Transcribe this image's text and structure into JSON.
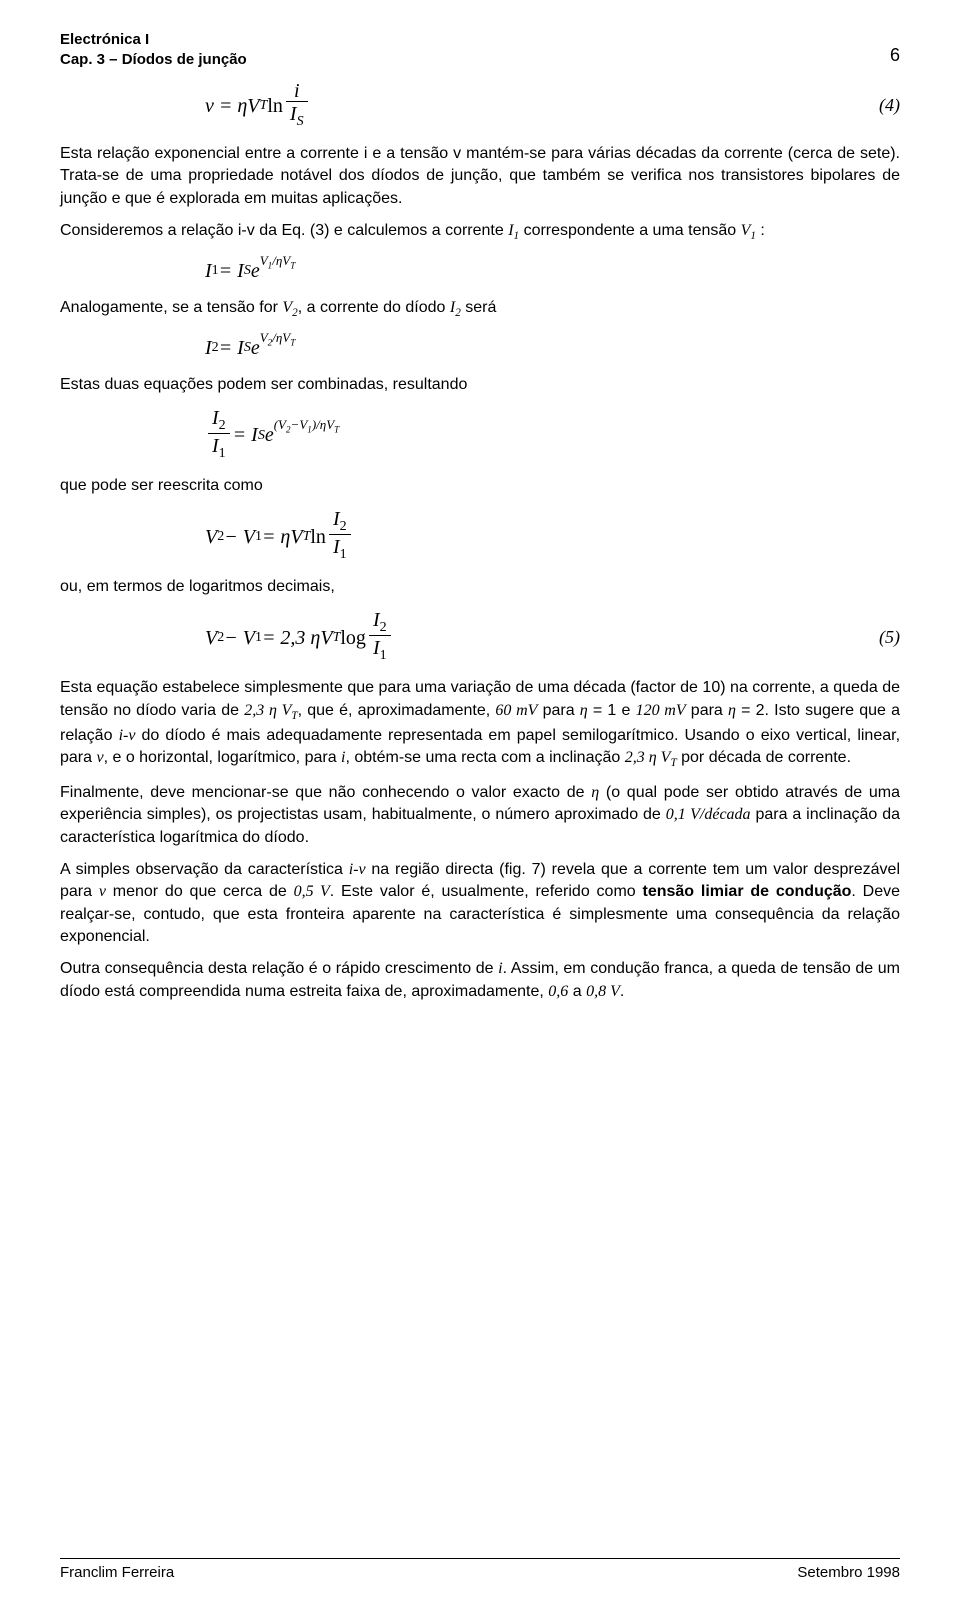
{
  "header": {
    "line1": "Electrónica I",
    "line2": "Cap. 3 – Díodos de junção",
    "page_number": "6"
  },
  "eq4": {
    "lhs": "v",
    "body": "= ηV",
    "body_sub": "T",
    "ln": " ln",
    "num_var": "i",
    "den_var": "I",
    "den_sub": "S",
    "number": "(4)"
  },
  "p1": "Esta relação exponencial entre a corrente i e a tensão v mantém-se para várias décadas da corrente (cerca de sete). Trata-se de uma propriedade notável dos díodos de junção, que também se verifica nos transistores bipolares de junção e que é explorada em muitas aplicações.",
  "p2_a": "Consideremos a relação i-v da Eq. (3) e calculemos a corrente ",
  "p2_i1": "I",
  "p2_i1_sub": "1",
  "p2_b": " correspondente a uma tensão ",
  "p2_v1": "V",
  "p2_v1_sub": "1",
  "p2_c": " :",
  "eq_i1": {
    "lhs": "I",
    "lhs_sub": "1",
    "eq": " = I",
    "is_sub": "S",
    "sp": " e",
    "exp": "V",
    "exp_sub": "1",
    "exp_div": "/ηV",
    "exp_T": "T"
  },
  "p3_a": "Analogamente, se a tensão for ",
  "p3_v2": "V",
  "p3_v2_sub": "2",
  "p3_b": ", a corrente do díodo ",
  "p3_i2": "I",
  "p3_i2_sub": "2",
  "p3_c": " será",
  "eq_i2": {
    "lhs": "I",
    "lhs_sub": "2",
    "eq": " = I",
    "is_sub": "S",
    "sp": " e",
    "exp": "V",
    "exp_sub": "2",
    "exp_div": "/ηV",
    "exp_T": "T"
  },
  "p4": "Estas duas equações podem ser combinadas, resultando",
  "eq_ratio": {
    "num_var": "I",
    "num_sub": "2",
    "den_var": "I",
    "den_sub": "1",
    "eq": " = I",
    "is_sub": "S",
    "sp": " e",
    "exp_open": "(V",
    "exp_sub2": "2",
    "exp_mid": "−V",
    "exp_sub1": "1",
    "exp_close": ")/ηV",
    "exp_T": "T"
  },
  "p5": "que pode ser reescrita como",
  "eq_v2v1": {
    "lhs1": "V",
    "lhs1_sub": "2",
    "minus": " − V",
    "lhs2_sub": "1",
    "eq": " = ηV",
    "eq_sub": "T",
    "ln": " ln",
    "num_var": "I",
    "num_sub": "2",
    "den_var": "I",
    "den_sub": "1"
  },
  "p6": "ou, em termos de logaritmos decimais,",
  "eq5": {
    "lhs1": "V",
    "lhs1_sub": "2",
    "minus": " − V",
    "lhs2_sub": "1",
    "eq": " = 2,3 ηV",
    "eq_sub": "T",
    "log": " log",
    "num_var": "I",
    "num_sub": "2",
    "den_var": "I",
    "den_sub": "1",
    "number": "(5)"
  },
  "p7_a": "Esta equação estabelece simplesmente que para uma variação de uma década (factor de 10) na corrente, a queda de tensão no díodo varia de ",
  "p7_val1": "2,3 η V",
  "p7_val1_sub": "T",
  "p7_b": ", que é, aproximadamente, ",
  "p7_val2": "60 mV",
  "p7_c": " para ",
  "p7_eta1": "η",
  "p7_d": " = 1 e ",
  "p7_val3": "120 mV",
  "p7_e": " para ",
  "p7_eta2": "η",
  "p7_f": " = 2. Isto sugere que a relação ",
  "p7_iv": "i-v",
  "p7_g": " do díodo é mais adequadamente representada em papel semilogarítmico. Usando o eixo vertical, linear, para ",
  "p7_v": "v",
  "p7_h": ", e o horizontal, logarítmico, para ",
  "p7_i": "i",
  "p7_j": ", obtém-se uma recta com a inclinação ",
  "p7_val4": "2,3 η V",
  "p7_val4_sub": "T",
  "p7_k": " por década de corrente.",
  "p8_a": "Finalmente, deve mencionar-se que não conhecendo o valor exacto de ",
  "p8_eta": "η",
  "p8_b": " (o qual pode ser obtido através de uma experiência simples), os projectistas usam, habitualmente, o número aproximado de ",
  "p8_val": "0,1 V/década",
  "p8_c": " para a inclinação da característica logarítmica do díodo.",
  "p9_a": "A simples observação da característica ",
  "p9_iv": "i-v",
  "p9_b": " na região directa (fig. 7) revela que a corrente tem um valor desprezável para ",
  "p9_v": "v",
  "p9_c": " menor do que cerca de ",
  "p9_val": "0,5 V",
  "p9_d": ". Este valor é, usualmente, referido como ",
  "p9_bold": "tensão limiar de condução",
  "p9_e": ". Deve realçar-se, contudo, que esta fronteira aparente na característica é simplesmente uma consequência da relação exponencial.",
  "p10_a": "Outra consequência desta relação é o rápido crescimento de ",
  "p10_i": "i",
  "p10_b": ". Assim, em condução franca, a queda de tensão de um díodo está compreendida numa estreita faixa de, aproximadamente, ",
  "p10_val1": "0,6",
  "p10_c": " a ",
  "p10_val2": "0,8 V",
  "p10_d": ".",
  "footer": {
    "left": "Franclim Ferreira",
    "right": "Setembro 1998"
  }
}
